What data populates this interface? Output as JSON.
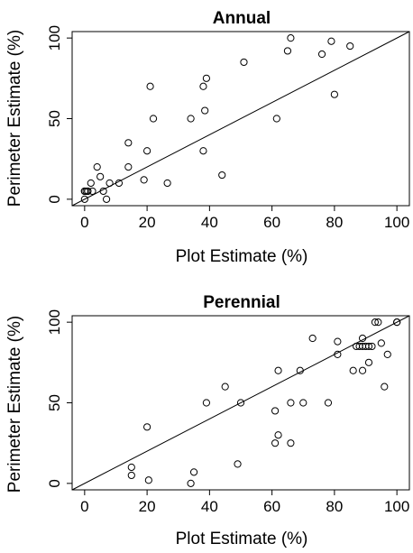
{
  "chart_data": [
    {
      "type": "scatter",
      "title": "Annual",
      "xlabel": "Plot Estimate (%)",
      "ylabel": "Perimeter Estimate (%)",
      "xlim": [
        -4,
        104
      ],
      "ylim": [
        -4,
        104
      ],
      "xticks": [
        0,
        20,
        40,
        60,
        80,
        100
      ],
      "yticks": [
        0,
        50,
        100
      ],
      "reference_line": "y = x",
      "points": [
        [
          0,
          0
        ],
        [
          0,
          5
        ],
        [
          0,
          5
        ],
        [
          0.5,
          5
        ],
        [
          1,
          5
        ],
        [
          1,
          5
        ],
        [
          2,
          10
        ],
        [
          2.5,
          5
        ],
        [
          4,
          20
        ],
        [
          5,
          14
        ],
        [
          6,
          5
        ],
        [
          7,
          0
        ],
        [
          8,
          10
        ],
        [
          11,
          10
        ],
        [
          14,
          35
        ],
        [
          14,
          20
        ],
        [
          19,
          12
        ],
        [
          20,
          30
        ],
        [
          21,
          70
        ],
        [
          22,
          50
        ],
        [
          26.5,
          10
        ],
        [
          34,
          50
        ],
        [
          38,
          30
        ],
        [
          38,
          70
        ],
        [
          38.5,
          55
        ],
        [
          39,
          75
        ],
        [
          44,
          15
        ],
        [
          51,
          85
        ],
        [
          61.5,
          50
        ],
        [
          65,
          92
        ],
        [
          66,
          100
        ],
        [
          76,
          90
        ],
        [
          79,
          98
        ],
        [
          80,
          65
        ],
        [
          85,
          95
        ]
      ]
    },
    {
      "type": "scatter",
      "title": "Perennial",
      "xlabel": "Plot Estimate (%)",
      "ylabel": "Perimeter Estimate (%)",
      "xlim": [
        -4,
        104
      ],
      "ylim": [
        -4,
        104
      ],
      "xticks": [
        0,
        20,
        40,
        60,
        80,
        100
      ],
      "yticks": [
        0,
        50,
        100
      ],
      "reference_line": "y = x",
      "points": [
        [
          15,
          10
        ],
        [
          15,
          5
        ],
        [
          20,
          35
        ],
        [
          20.5,
          2
        ],
        [
          34,
          0
        ],
        [
          35,
          7
        ],
        [
          39,
          50
        ],
        [
          45,
          60
        ],
        [
          49,
          12
        ],
        [
          50,
          50
        ],
        [
          61,
          25
        ],
        [
          61,
          45
        ],
        [
          62,
          70
        ],
        [
          62,
          30
        ],
        [
          66,
          25
        ],
        [
          66,
          50
        ],
        [
          69,
          70
        ],
        [
          70,
          50
        ],
        [
          73,
          90
        ],
        [
          78,
          50
        ],
        [
          81,
          88
        ],
        [
          81,
          80
        ],
        [
          86,
          70
        ],
        [
          87,
          85
        ],
        [
          88,
          85
        ],
        [
          89,
          70
        ],
        [
          89,
          90
        ],
        [
          89,
          85
        ],
        [
          90,
          85
        ],
        [
          91,
          85
        ],
        [
          91,
          75
        ],
        [
          92,
          85
        ],
        [
          93,
          100
        ],
        [
          94,
          100
        ],
        [
          95,
          87
        ],
        [
          96,
          60
        ],
        [
          97,
          80
        ],
        [
          100,
          100
        ],
        [
          100,
          100
        ]
      ]
    }
  ]
}
